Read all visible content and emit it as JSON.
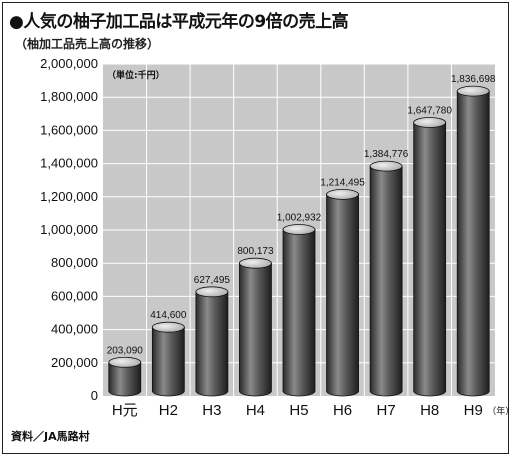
{
  "page": {
    "title": "●人気の柚子加工品は平成元年の9倍の売上高",
    "subtitle": "（柚加工品売上高の推移）",
    "source": "資料／JA馬路村"
  },
  "chart_data": {
    "type": "bar",
    "title": "人気の柚子加工品は平成元年の9倍の売上高",
    "subtitle": "（柚加工品売上高の推移）",
    "unit_label": "（単位:千円）",
    "x_unit_label": "（年）",
    "categories": [
      "H元",
      "H2",
      "H3",
      "H4",
      "H5",
      "H6",
      "H7",
      "H8",
      "H9"
    ],
    "values": [
      203090,
      414600,
      627495,
      800173,
      1002932,
      1214495,
      1384776,
      1647780,
      1836698
    ],
    "value_labels": [
      "203,090",
      "414,600",
      "627,495",
      "800,173",
      "1,002,932",
      "1,214,495",
      "1,384,776",
      "1,647,780",
      "1,836,698"
    ],
    "yticks": [
      0,
      200000,
      400000,
      600000,
      800000,
      1000000,
      1200000,
      1400000,
      1600000,
      1800000,
      2000000
    ],
    "ytick_labels": [
      "0",
      "200,000",
      "400,000",
      "600,000",
      "800,000",
      "1,000,000",
      "1,200,000",
      "1,400,000",
      "1,600,000",
      "1,800,000",
      "2,000,000"
    ],
    "ylim": [
      0,
      2000000
    ],
    "grid": true,
    "colors": {
      "plot_background": "#c8c8c8",
      "grid": "#ffffff",
      "bar_dark": "#2a2a2a",
      "bar_light": "#8a8a8a",
      "bar_top": "#d6d6d6"
    },
    "source": "資料／JA馬路村"
  }
}
